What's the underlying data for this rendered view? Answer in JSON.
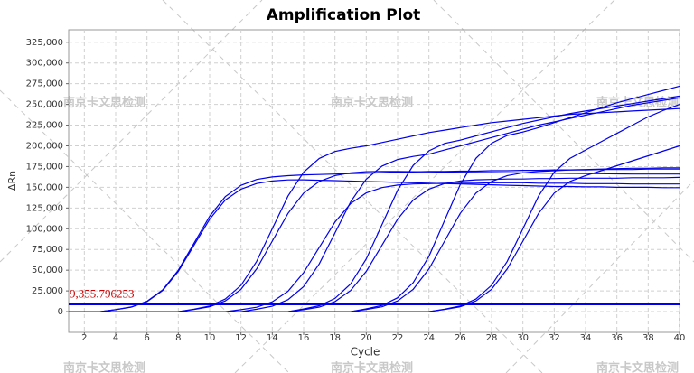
{
  "chart_data": {
    "type": "line",
    "title": "Amplification Plot",
    "x_label": "Cycle",
    "y_label": "ΔRn",
    "watermark": "南京卡文思检测",
    "color": "#0000ee",
    "grid": true,
    "threshold": {
      "value": 9355.796253,
      "label": "9,355.796253"
    },
    "threshold_color": "#0000ee",
    "threshold_label_color": "#cc0000",
    "xlim": [
      1,
      40
    ],
    "ylim": [
      -25000,
      340000
    ],
    "xticks": [
      2,
      4,
      6,
      8,
      10,
      12,
      14,
      16,
      18,
      20,
      22,
      24,
      26,
      28,
      30,
      32,
      34,
      36,
      38,
      40
    ],
    "yticks": [
      0,
      {
        "value": 25000,
        "label": "25,000"
      },
      {
        "value": 50000,
        "label": "50,000"
      },
      {
        "value": 75000,
        "label": "75,000"
      },
      {
        "value": 100000,
        "label": "100,000"
      },
      {
        "value": 125000,
        "label": "125,000"
      },
      {
        "value": 150000,
        "label": "150,000"
      },
      {
        "value": 175000,
        "label": "175,000"
      },
      {
        "value": 200000,
        "label": "200,000"
      },
      {
        "value": 225000,
        "label": "225,000"
      },
      {
        "value": 250000,
        "label": "250,000"
      },
      {
        "value": 275000,
        "label": "275,000"
      },
      {
        "value": 300000,
        "label": "300,000"
      },
      {
        "value": 325000,
        "label": "325,000"
      }
    ],
    "x": [
      1,
      2,
      3,
      4,
      5,
      6,
      7,
      8,
      9,
      10,
      11,
      12,
      13,
      14,
      15,
      16,
      17,
      18,
      19,
      20,
      21,
      22,
      23,
      24,
      25,
      26,
      27,
      28,
      29,
      30,
      31,
      32,
      33,
      34,
      35,
      36,
      37,
      38,
      39,
      40
    ],
    "series": [
      {
        "values": [
          0,
          0,
          0,
          2400,
          5400,
          12200,
          25400,
          48500,
          80000,
          111500,
          134600,
          147800,
          154600,
          157600,
          158900,
          159000,
          158500,
          158000,
          157500,
          157000,
          156500,
          156000,
          155500,
          155000,
          154500,
          154000,
          153500,
          153000,
          152500,
          152000,
          151500,
          151000,
          151000,
          150500,
          150500,
          150000,
          150000,
          150000,
          149500,
          149500
        ]
      },
      {
        "values": [
          0,
          0,
          0,
          2500,
          5600,
          12500,
          26200,
          50000,
          82500,
          115000,
          138800,
          152400,
          159500,
          162500,
          164000,
          165000,
          165500,
          166000,
          166500,
          167000,
          167500,
          168000,
          168500,
          169000,
          169000,
          169500,
          169500,
          170000,
          170000,
          170500,
          170500,
          171000,
          171000,
          171000,
          171500,
          171500,
          171500,
          172000,
          172000,
          172000
        ]
      },
      {
        "values": [
          0,
          0,
          0,
          0,
          0,
          0,
          0,
          0,
          2600,
          5800,
          12900,
          27000,
          51500,
          85000,
          118500,
          143000,
          157100,
          164200,
          167500,
          168800,
          169000,
          169000,
          168800,
          168600,
          168400,
          168200,
          168000,
          167800,
          167600,
          167400,
          167200,
          167000,
          166800,
          166600,
          166400,
          166200,
          166000,
          166000,
          166000,
          166000
        ]
      },
      {
        "values": [
          0,
          0,
          0,
          0,
          0,
          0,
          0,
          0,
          3000,
          6800,
          15200,
          31800,
          60600,
          100000,
          139400,
          168200,
          184800,
          193200,
          197000,
          200000,
          204000,
          208000,
          212000,
          216000,
          219000,
          222000,
          225000,
          228000,
          230000,
          232000,
          234000,
          236000,
          238000,
          239000,
          240000,
          241000,
          242000,
          243000,
          244000,
          245000
        ]
      },
      {
        "values": [
          0,
          0,
          0,
          0,
          0,
          0,
          0,
          0,
          0,
          0,
          0,
          2300,
          5300,
          11800,
          24600,
          47000,
          77500,
          108000,
          130400,
          143200,
          149700,
          152700,
          154000,
          154500,
          155000,
          155000,
          155000,
          155500,
          155500,
          155500,
          155000,
          155000,
          155000,
          154500,
          154500,
          154500,
          154000,
          154000,
          154000,
          154000
        ]
      },
      {
        "values": [
          0,
          0,
          0,
          0,
          0,
          0,
          0,
          0,
          0,
          0,
          0,
          0,
          2900,
          6500,
          14400,
          30200,
          57600,
          95000,
          132400,
          159800,
          175600,
          183500,
          187200,
          190000,
          195000,
          200000,
          205000,
          210000,
          215000,
          220000,
          225000,
          229000,
          233000,
          237000,
          241000,
          245000,
          249000,
          252000,
          255000,
          258000
        ]
      },
      {
        "values": [
          0,
          0,
          0,
          0,
          0,
          0,
          0,
          0,
          0,
          0,
          0,
          0,
          0,
          0,
          0,
          2400,
          5400,
          12200,
          25400,
          48500,
          80000,
          111500,
          134600,
          147800,
          154600,
          157600,
          159000,
          159500,
          160000,
          160000,
          160500,
          160500,
          161000,
          161000,
          161000,
          161000,
          161500,
          161500,
          161500,
          162000
        ]
      },
      {
        "values": [
          0,
          0,
          0,
          0,
          0,
          0,
          0,
          0,
          0,
          0,
          0,
          0,
          0,
          0,
          0,
          3200,
          7100,
          16000,
          33400,
          63600,
          105000,
          146400,
          176600,
          194000,
          202900,
          206900,
          212000,
          217000,
          222000,
          227000,
          231000,
          235000,
          239000,
          242000,
          245000,
          248000,
          251000,
          254000,
          257000,
          260000
        ]
      },
      {
        "values": [
          0,
          0,
          0,
          0,
          0,
          0,
          0,
          0,
          0,
          0,
          0,
          0,
          0,
          0,
          0,
          0,
          0,
          0,
          0,
          2600,
          5800,
          12900,
          27000,
          51500,
          85000,
          118500,
          143000,
          157100,
          164200,
          167500,
          169000,
          170000,
          171000,
          171500,
          172000,
          172500,
          173000,
          173000,
          173500,
          173500
        ]
      },
      {
        "values": [
          0,
          0,
          0,
          0,
          0,
          0,
          0,
          0,
          0,
          0,
          0,
          0,
          0,
          0,
          0,
          0,
          0,
          0,
          0,
          3300,
          7500,
          16700,
          35000,
          66700,
          110000,
          153300,
          185000,
          203200,
          212500,
          216700,
          222000,
          228000,
          234000,
          240000,
          246000,
          252000,
          257000,
          262000,
          267000,
          272000
        ]
      },
      {
        "values": [
          0,
          0,
          0,
          0,
          0,
          0,
          0,
          0,
          0,
          0,
          0,
          0,
          0,
          0,
          0,
          0,
          0,
          0,
          0,
          0,
          0,
          0,
          0,
          0,
          2600,
          5800,
          12900,
          27000,
          51500,
          85000,
          118500,
          143000,
          157100,
          164200,
          170000,
          176000,
          182000,
          188000,
          194000,
          200000
        ]
      },
      {
        "values": [
          0,
          0,
          0,
          0,
          0,
          0,
          0,
          0,
          0,
          0,
          0,
          0,
          0,
          0,
          0,
          0,
          0,
          0,
          0,
          0,
          0,
          0,
          0,
          0,
          3000,
          6800,
          15200,
          31800,
          60600,
          100000,
          139400,
          168200,
          184800,
          195000,
          205000,
          215000,
          225000,
          235000,
          243000,
          250000
        ]
      }
    ]
  }
}
